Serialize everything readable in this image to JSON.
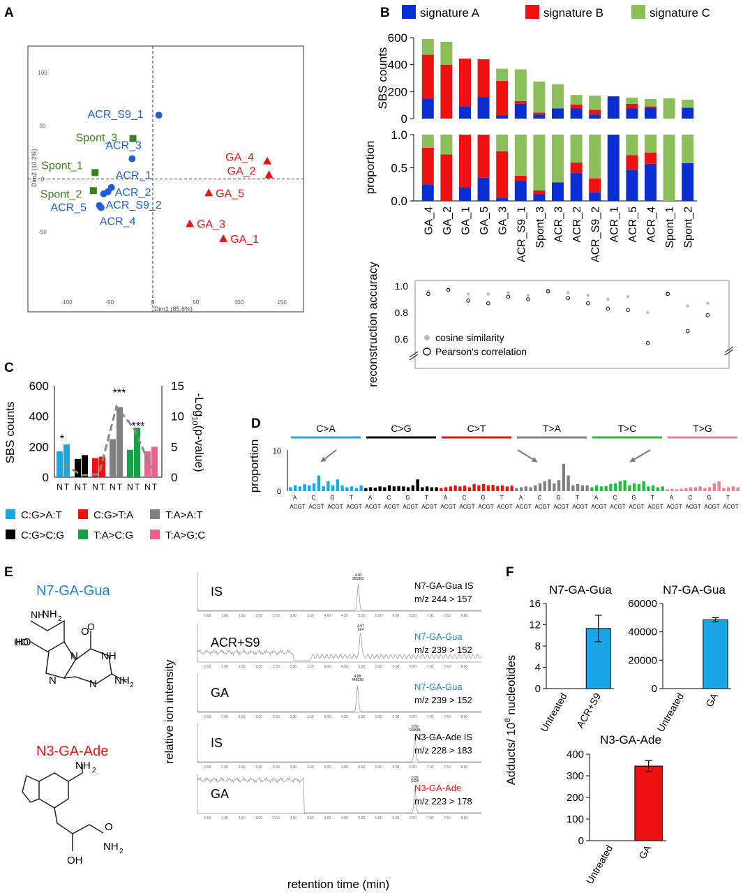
{
  "panel_letters": [
    "A",
    "B",
    "C",
    "D",
    "E",
    "F"
  ],
  "colors": {
    "sigA": "#0a2fd0",
    "sigB": "#ee1111",
    "sigC": "#8bbf59",
    "blue": "#1f5fd1",
    "green": "#3f7f1f",
    "red": "#ee1111",
    "gray": "#808080"
  },
  "chart_data": [
    {
      "type": "scatter",
      "panel": "A",
      "xlabel": "Dim1 (85.6%)",
      "ylabel": "Dim2 (10.2%)",
      "xticks": [
        -100,
        -50,
        0,
        50,
        100,
        150
      ],
      "yticks": [
        100,
        50,
        0,
        -50
      ],
      "xlim": [
        -145,
        175
      ],
      "ylim": [
        -125,
        125
      ],
      "points": [
        {
          "name": "ACR_S9_1",
          "x": 7,
          "y": 60,
          "group": "ACR"
        },
        {
          "name": "Spont_3",
          "x": -23,
          "y": 38,
          "group": "Spont"
        },
        {
          "name": "ACR_3",
          "x": -24,
          "y": 19,
          "group": "ACR"
        },
        {
          "name": "Spont_1",
          "x": -67,
          "y": 6,
          "group": "Spont"
        },
        {
          "name": "ACR_1",
          "x": -48,
          "y": -8,
          "group": "ACR"
        },
        {
          "name": "Spont_2",
          "x": -69,
          "y": -11,
          "group": "Spont"
        },
        {
          "name": "ACR_2",
          "x": -52,
          "y": -12,
          "group": "ACR"
        },
        {
          "name": "ACR_S9_2",
          "x": -57,
          "y": -14,
          "group": "ACR"
        },
        {
          "name": "ACR_5",
          "x": -62,
          "y": -25,
          "group": "ACR"
        },
        {
          "name": "ACR_4",
          "x": -60,
          "y": -27,
          "group": "ACR"
        },
        {
          "name": "GA_4",
          "x": 133,
          "y": 17,
          "group": "GA"
        },
        {
          "name": "GA_2",
          "x": 135,
          "y": 4,
          "group": "GA"
        },
        {
          "name": "GA_5",
          "x": 65,
          "y": -13,
          "group": "GA"
        },
        {
          "name": "GA_3",
          "x": 43,
          "y": -42,
          "group": "GA"
        },
        {
          "name": "GA_1",
          "x": 82,
          "y": -56,
          "group": "GA"
        }
      ]
    },
    {
      "type": "bar",
      "panel": "B",
      "stacked": true,
      "ylabel": "SBS counts",
      "ylim": [
        0,
        600
      ],
      "yticks": [
        0,
        200,
        400,
        600
      ],
      "legend_position": "top",
      "categories": [
        "GA_4",
        "GA_2",
        "GA_1",
        "GA_5",
        "GA_3",
        "ACR_S9_1",
        "Spont_3",
        "ACR_3",
        "ACR_2",
        "ACR_S9_2",
        "ACR_1",
        "ACR_5",
        "ACR_4",
        "Spont_1",
        "Spont_2"
      ],
      "series": [
        {
          "name": "signature A",
          "values": [
            148,
            0,
            90,
            160,
            25,
            110,
            30,
            75,
            75,
            30,
            165,
            75,
            80,
            0,
            80
          ]
        },
        {
          "name": "signature B",
          "values": [
            325,
            400,
            355,
            280,
            255,
            20,
            15,
            0,
            30,
            35,
            0,
            35,
            10,
            0,
            0
          ]
        },
        {
          "name": "signature C",
          "values": [
            117,
            170,
            0,
            0,
            90,
            235,
            230,
            180,
            70,
            105,
            0,
            45,
            55,
            150,
            60
          ]
        }
      ]
    },
    {
      "type": "bar",
      "panel": "B-proportion",
      "stacked": true,
      "ylabel": "proportion",
      "ylim": [
        0,
        1
      ],
      "yticks": [
        0.0,
        0.5,
        1.0
      ],
      "categories": [
        "GA_4",
        "GA_2",
        "GA_1",
        "GA_5",
        "GA_3",
        "ACR_S9_1",
        "Spont_3",
        "ACR_3",
        "ACR_2",
        "ACR_S9_2",
        "ACR_1",
        "ACR_5",
        "ACR_4",
        "Spont_1",
        "Spont_2"
      ],
      "series": [
        {
          "name": "signature A",
          "values": [
            0.25,
            0,
            0.2,
            0.35,
            0.05,
            0.3,
            0.1,
            0.28,
            0.42,
            0.13,
            1.0,
            0.47,
            0.56,
            0,
            0.57
          ]
        },
        {
          "name": "signature B",
          "values": [
            0.55,
            0.7,
            0.8,
            0.65,
            0.7,
            0.08,
            0.06,
            0,
            0.16,
            0.21,
            0,
            0.22,
            0.17,
            0,
            0
          ]
        },
        {
          "name": "signature C",
          "values": [
            0.2,
            0.3,
            0,
            0,
            0.25,
            0.62,
            0.84,
            0.72,
            0.42,
            0.66,
            0,
            0.31,
            0.27,
            1.0,
            0.43
          ]
        }
      ]
    },
    {
      "type": "scatter",
      "panel": "B-accuracy",
      "ylabel": "reconstruction accuracy",
      "ylim": [
        0.45,
        1.05
      ],
      "yticks": [
        1.0,
        0.8,
        0.6
      ],
      "categories": [
        "GA_4",
        "GA_2",
        "GA_1",
        "GA_5",
        "GA_3",
        "ACR_S9_1",
        "Spont_3",
        "ACR_3",
        "ACR_2",
        "ACR_S9_2",
        "ACR_1",
        "ACR_5",
        "ACR_4",
        "Spont_1",
        "Spont_2"
      ],
      "series": [
        {
          "name": "cosine similarity",
          "values": [
            0.96,
            0.98,
            0.94,
            0.94,
            0.95,
            0.93,
            0.97,
            0.95,
            0.93,
            0.9,
            0.92,
            0.8,
            0.95,
            0.85,
            0.87
          ]
        },
        {
          "name": "Pearson's correlation",
          "values": [
            0.94,
            0.97,
            0.89,
            0.87,
            0.92,
            0.9,
            0.96,
            0.91,
            0.87,
            0.83,
            0.82,
            0.57,
            0.94,
            0.66,
            0.78
          ]
        }
      ]
    },
    {
      "type": "bar",
      "panel": "C",
      "ylabel": "SBS counts",
      "ylabel_right": "-Log10(p-value)",
      "ylim": [
        0,
        600
      ],
      "ylim_right": [
        0,
        15
      ],
      "yticks": [
        0,
        200,
        400,
        600
      ],
      "yticks_right": [
        0,
        5,
        10,
        15
      ],
      "tick_letters": [
        "N",
        "T"
      ],
      "categories": [
        "C:G>A:T",
        "C:G>C:G",
        "C:G>T:A",
        "T:A>A:T",
        "T:A>C:G",
        "T:A>G:C"
      ],
      "series": [
        {
          "name": "N",
          "values": [
            170,
            120,
            125,
            250,
            180,
            170
          ]
        },
        {
          "name": "T",
          "values": [
            215,
            145,
            135,
            460,
            325,
            200
          ]
        }
      ],
      "pvalue_line": [
        2.2,
        0.3,
        0.5,
        11.6,
        8.0,
        1.5
      ],
      "significance": [
        "*",
        "",
        "",
        "***",
        "***",
        ""
      ]
    },
    {
      "type": "bar",
      "panel": "D",
      "ylabel": "proportion",
      "ylim": [
        0,
        10
      ],
      "yticks": [
        0,
        10
      ],
      "groups": [
        "C>A",
        "C>G",
        "C>T",
        "T>A",
        "T>C",
        "T>G"
      ],
      "base_letters": [
        "A",
        "C",
        "G",
        "T"
      ],
      "context_label": "ACGT",
      "values": [
        1.0,
        1.5,
        1.2,
        1.8,
        1.5,
        2.0,
        4.0,
        1.3,
        2.5,
        1.5,
        3.0,
        1.5,
        1.0,
        1.2,
        0.8,
        1.5,
        0.8,
        1.0,
        0.9,
        1.2,
        1.0,
        1.5,
        1.2,
        1.3,
        1.2,
        1.0,
        1.5,
        3.0,
        1.0,
        1.2,
        1.0,
        1.0,
        0.8,
        1.0,
        1.2,
        1.5,
        1.2,
        1.4,
        1.0,
        1.8,
        1.5,
        1.8,
        1.5,
        1.6,
        1.3,
        1.5,
        1.2,
        1.4,
        0.8,
        1.0,
        1.2,
        1.0,
        1.5,
        2.0,
        2.5,
        3.0,
        2.0,
        2.8,
        7.0,
        4.0,
        1.5,
        1.8,
        1.5,
        1.5,
        1.0,
        1.5,
        1.2,
        1.3,
        1.8,
        2.0,
        2.5,
        2.8,
        1.5,
        2.0,
        1.8,
        2.5,
        1.2,
        1.5,
        1.0,
        1.2,
        0.5,
        0.6,
        0.5,
        0.6,
        0.8,
        1.0,
        1.0,
        1.2,
        0.8,
        1.0,
        2.0,
        2.5,
        0.8,
        1.0,
        1.2,
        1.0
      ]
    },
    {
      "type": "bar",
      "panel": "F1",
      "title": "N7-GA-Gua",
      "ylim": [
        0,
        16
      ],
      "yticks": [
        0,
        4,
        8,
        12,
        16
      ],
      "categories": [
        "Untreated",
        "ACR+S9"
      ],
      "values": [
        0,
        11.3
      ],
      "errors": [
        0,
        2.5
      ]
    },
    {
      "type": "bar",
      "panel": "F2",
      "title": "N7-GA-Gua",
      "ylim": [
        0,
        60000
      ],
      "yticks": [
        0,
        20000,
        40000,
        60000
      ],
      "categories": [
        "Untreated",
        "GA"
      ],
      "values": [
        0,
        48500
      ],
      "errors": [
        0,
        1500
      ]
    },
    {
      "type": "bar",
      "panel": "F3",
      "title": "N3-GA-Ade",
      "ylim": [
        0,
        400
      ],
      "yticks": [
        0,
        100,
        200,
        300,
        400
      ],
      "categories": [
        "Untreated",
        "GA"
      ],
      "values": [
        0,
        345
      ],
      "errors": [
        0,
        25
      ]
    }
  ],
  "panelC_legend": [
    {
      "label": "C:G>A:T",
      "color": "#1aa7e8"
    },
    {
      "label": "C:G>T:A",
      "color": "#ee1111"
    },
    {
      "label": "T:A>A:T",
      "color": "#808080"
    },
    {
      "label": "C:G>C:G",
      "color": "#000000"
    },
    {
      "label": "T:A>C:G",
      "color": "#1a9f48"
    },
    {
      "label": "T:A>G:C",
      "color": "#f06088"
    }
  ],
  "panelD_colors": [
    "#1aa7e8",
    "#000000",
    "#ee1111",
    "#808080",
    "#1fbf3f",
    "#f08090"
  ],
  "panelE": {
    "mol1_name": "N7-GA-Gua",
    "mol2_name": "N3-GA-Ade",
    "ylabel": "relative ion intensity",
    "xlabel": "retention time (min)",
    "traces": [
      {
        "left": "IS",
        "right1": "N7-GA-Gua IS",
        "right2": "m/z 244 > 157",
        "right1_color": "#000000",
        "peak": 4.9,
        "tag1": "4.90",
        "tag2": "281862",
        "noise": false
      },
      {
        "left": "ACR+S9",
        "right1": "N7-GA-Gua",
        "right2": "m/z 239 > 152",
        "right1_color": "#1f7fd1",
        "peak": 4.97,
        "tag1": "4.97",
        "tag2": "914",
        "noise": true
      },
      {
        "left": "GA",
        "right1": "N7-GA-Gua",
        "right2": "m/z 239 > 152",
        "right1_color": "#1f7fd1",
        "peak": 4.88,
        "tag1": "4.88",
        "tag2": "446220",
        "noise": false
      },
      {
        "left": "IS",
        "right1": "N3-GA-Ade IS",
        "right2": "m/z 228 > 183",
        "right1_color": "#000000",
        "peak": 6.56,
        "tag1": "6.56",
        "tag2": "160581",
        "noise": false
      },
      {
        "left": "GA",
        "right1": "N3-GA-Ade",
        "right2": "m/z 223 > 178",
        "right1_color": "#ee1111",
        "peak": 6.56,
        "tag1": "6.56",
        "tag2": "5326",
        "noise": true
      }
    ],
    "tick_labels": [
      "0.50",
      "1.00",
      "1.50",
      "2.00",
      "2.50",
      "3.00",
      "3.50",
      "4.00",
      "4.50",
      "5.00",
      "5.50",
      "6.00",
      "6.50",
      "7.00",
      "7.50",
      "8.00"
    ]
  },
  "panelF_ylabel": "Adducts/ 10",
  "panelF_ylabel_sup": "8",
  "panelF_ylabel_tail": " nucleotides"
}
